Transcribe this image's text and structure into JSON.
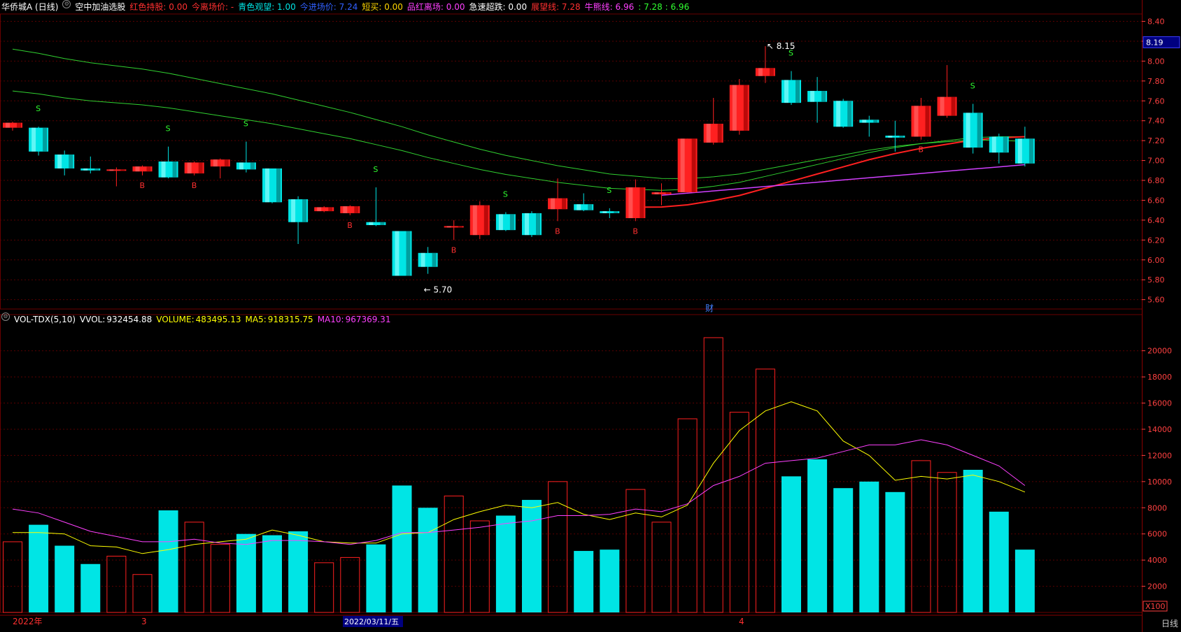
{
  "header": {
    "stock_name": "华侨城A (日线)",
    "indicator_name": "空中加油选股",
    "items": [
      {
        "label": "红色持股:",
        "value": "0.00",
        "color": "#ff3030"
      },
      {
        "label": "今离场价:",
        "value": "-",
        "color": "#ff3030"
      },
      {
        "label": "青色观望:",
        "value": "1.00",
        "color": "#00e5e5"
      },
      {
        "label": "今进场价:",
        "value": "7.24",
        "color": "#3060ff"
      },
      {
        "label": "短买:",
        "value": "0.00",
        "color": "#ffd700"
      },
      {
        "label": "品红离场:",
        "value": "0.00",
        "color": "#ff40ff"
      },
      {
        "label": "急速超跌:",
        "value": "0.00",
        "color": "#ffffff"
      },
      {
        "label": "展望线:",
        "value": "7.28",
        "color": "#ff3030"
      },
      {
        "label": "牛熊线:",
        "value": "6.96",
        "color": "#ff40ff"
      },
      {
        "label": ":",
        "value": "7.28 : 6.96",
        "color": "#30ff30"
      }
    ]
  },
  "volume_header": {
    "name": "VOL-TDX(5,10)",
    "vvol_label": "VVOL:",
    "vvol_value": "932454.88",
    "volume_label": "VOLUME:",
    "volume_value": "483495.13",
    "ma5_label": "MA5:",
    "ma5_value": "918315.75",
    "ma10_label": "MA10:",
    "ma10_value": "967369.31"
  },
  "price_axis": {
    "ticks": [
      "8.40",
      "8.20",
      "8.00",
      "7.80",
      "7.60",
      "7.40",
      "7.20",
      "7.00",
      "6.80",
      "6.60",
      "6.40",
      "6.20",
      "6.00",
      "5.80",
      "5.60"
    ],
    "current_price": "8.19"
  },
  "volume_axis": {
    "ticks": [
      "20000",
      "18000",
      "16000",
      "14000",
      "12000",
      "10000",
      "8000",
      "6000",
      "4000",
      "2000"
    ],
    "multiplier": "X100"
  },
  "bottom": {
    "year_label": "2022年",
    "month3": "3",
    "month4": "4",
    "selected_date": "2022/03/11/五",
    "cycle": "日线"
  },
  "annotations": {
    "high": "8.15",
    "low": "5.70",
    "fin": "财",
    "buy": "B",
    "sell": "S"
  },
  "colors": {
    "up": "#ff2020",
    "down": "#00e5e5",
    "ma_green": "#30d030",
    "trend_red": "#ff2020",
    "trend_magenta": "#d040ff",
    "vol_ma5": "#ffff00",
    "vol_ma10": "#ff40ff",
    "grid": "#5a0000"
  },
  "chart_data": {
    "type": "candlestick",
    "candles": [
      {
        "o": 7.33,
        "c": 7.38,
        "h": 7.39,
        "l": 7.3,
        "v": 5400
      },
      {
        "o": 7.33,
        "c": 7.09,
        "h": 7.34,
        "l": 7.05,
        "v": 6700
      },
      {
        "o": 7.06,
        "c": 6.92,
        "h": 7.1,
        "l": 6.85,
        "v": 5100
      },
      {
        "o": 6.92,
        "c": 6.9,
        "h": 7.04,
        "l": 6.87,
        "v": 3700
      },
      {
        "o": 6.9,
        "c": 6.91,
        "h": 6.93,
        "l": 6.74,
        "v": 4300
      },
      {
        "o": 6.89,
        "c": 6.94,
        "h": 6.95,
        "l": 6.85,
        "v": 2900
      },
      {
        "o": 6.99,
        "c": 6.83,
        "h": 7.14,
        "l": 6.82,
        "v": 7800
      },
      {
        "o": 6.87,
        "c": 6.98,
        "h": 6.99,
        "l": 6.85,
        "v": 6900
      },
      {
        "o": 6.94,
        "c": 7.01,
        "h": 7.02,
        "l": 6.82,
        "v": 5200
      },
      {
        "o": 6.98,
        "c": 6.91,
        "h": 7.19,
        "l": 6.88,
        "v": 6000
      },
      {
        "o": 6.92,
        "c": 6.58,
        "h": 6.92,
        "l": 6.57,
        "v": 5900
      },
      {
        "o": 6.61,
        "c": 6.38,
        "h": 6.64,
        "l": 6.16,
        "v": 6200
      },
      {
        "o": 6.49,
        "c": 6.53,
        "h": 6.54,
        "l": 6.48,
        "v": 3800
      },
      {
        "o": 6.47,
        "c": 6.54,
        "h": 6.55,
        "l": 6.45,
        "v": 4200
      },
      {
        "o": 6.38,
        "c": 6.35,
        "h": 6.73,
        "l": 6.34,
        "v": 5200
      },
      {
        "o": 6.29,
        "c": 5.84,
        "h": 6.29,
        "l": 5.84,
        "v": 9700
      },
      {
        "o": 6.07,
        "c": 5.93,
        "h": 6.13,
        "l": 5.86,
        "v": 8000
      },
      {
        "o": 6.33,
        "c": 6.34,
        "h": 6.4,
        "l": 6.2,
        "v": 8900
      },
      {
        "o": 6.25,
        "c": 6.55,
        "h": 6.59,
        "l": 6.21,
        "v": 7000
      },
      {
        "o": 6.46,
        "c": 6.3,
        "h": 6.48,
        "l": 6.29,
        "v": 7400
      },
      {
        "o": 6.47,
        "c": 6.25,
        "h": 6.49,
        "l": 6.23,
        "v": 8600
      },
      {
        "o": 6.51,
        "c": 6.62,
        "h": 6.82,
        "l": 6.39,
        "v": 10000
      },
      {
        "o": 6.56,
        "c": 6.5,
        "h": 6.67,
        "l": 6.49,
        "v": 4700
      },
      {
        "o": 6.49,
        "c": 6.47,
        "h": 6.52,
        "l": 6.42,
        "v": 4800
      },
      {
        "o": 6.42,
        "c": 6.73,
        "h": 6.81,
        "l": 6.39,
        "v": 9400
      },
      {
        "o": 6.66,
        "c": 6.68,
        "h": 6.77,
        "l": 6.55,
        "v": 6900
      },
      {
        "o": 6.68,
        "c": 7.22,
        "h": 7.22,
        "l": 6.68,
        "v": 14800
      },
      {
        "o": 7.18,
        "c": 7.37,
        "h": 7.63,
        "l": 7.16,
        "v": 21000
      },
      {
        "o": 7.3,
        "c": 7.76,
        "h": 7.82,
        "l": 7.26,
        "v": 15300
      },
      {
        "o": 7.85,
        "c": 7.93,
        "h": 8.15,
        "l": 7.78,
        "v": 18600
      },
      {
        "o": 7.81,
        "c": 7.58,
        "h": 7.9,
        "l": 7.56,
        "v": 10400
      },
      {
        "o": 7.7,
        "c": 7.59,
        "h": 7.84,
        "l": 7.38,
        "v": 11700
      },
      {
        "o": 7.6,
        "c": 7.34,
        "h": 7.62,
        "l": 7.33,
        "v": 9500
      },
      {
        "o": 7.41,
        "c": 7.38,
        "h": 7.45,
        "l": 7.24,
        "v": 10000
      },
      {
        "o": 7.25,
        "c": 7.23,
        "h": 7.4,
        "l": 7.09,
        "v": 9200
      },
      {
        "o": 7.24,
        "c": 7.55,
        "h": 7.63,
        "l": 7.21,
        "v": 11600
      },
      {
        "o": 7.45,
        "c": 7.64,
        "h": 7.96,
        "l": 7.43,
        "v": 10700
      },
      {
        "o": 7.48,
        "c": 7.13,
        "h": 7.57,
        "l": 7.07,
        "v": 10900
      },
      {
        "o": 7.24,
        "c": 7.08,
        "h": 7.27,
        "l": 6.97,
        "v": 7700
      },
      {
        "o": 7.22,
        "c": 6.97,
        "h": 7.34,
        "l": 6.94,
        "v": 4800
      }
    ],
    "ma_line": [
      7.7,
      7.67,
      7.63,
      7.6,
      7.58,
      7.56,
      7.53,
      7.49,
      7.45,
      7.41,
      7.37,
      7.32,
      7.27,
      7.22,
      7.16,
      7.1,
      7.03,
      6.97,
      6.91,
      6.86,
      6.82,
      6.78,
      6.75,
      6.72,
      6.71,
      6.7,
      6.71,
      6.74,
      6.78,
      6.84,
      6.9,
      6.96,
      7.02,
      7.08,
      7.13,
      7.17,
      7.2,
      7.23,
      7.24,
      7.24
    ],
    "vol_ma5": [
      6100,
      6100,
      6000,
      5100,
      5000,
      4500,
      4800,
      5200,
      5400,
      5600,
      6300,
      5900,
      5400,
      5300,
      5300,
      6000,
      6100,
      7100,
      7700,
      8200,
      8000,
      8400,
      7500,
      7100,
      7600,
      7300,
      8200,
      11400,
      13900,
      15400,
      16100,
      15400,
      13100,
      12000,
      10100,
      10400,
      10200,
      10500,
      10000,
      9200
    ],
    "vol_ma10": [
      7900,
      7600,
      6900,
      6200,
      5800,
      5400,
      5400,
      5600,
      5300,
      5200,
      5500,
      5500,
      5400,
      5200,
      5500,
      6100,
      6100,
      6300,
      6500,
      6800,
      7000,
      7400,
      7400,
      7500,
      7900,
      7700,
      8300,
      9700,
      10400,
      11400,
      11600,
      11800,
      12300,
      12800,
      12800,
      13200,
      12800,
      12000,
      11200,
      9700
    ],
    "buy_marks": [
      5,
      7,
      13,
      17,
      21,
      24,
      35
    ],
    "sell_marks": [
      1,
      6,
      9,
      14,
      19,
      23,
      30,
      37
    ]
  }
}
